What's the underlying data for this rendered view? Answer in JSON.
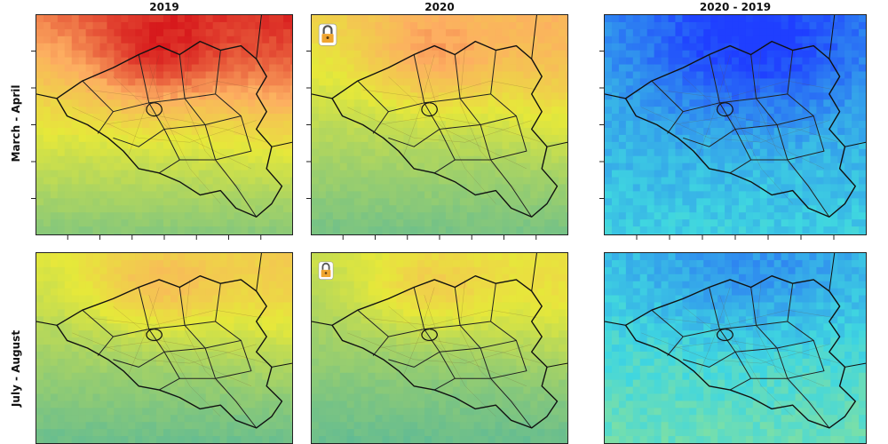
{
  "columns": [
    "2019",
    "2020",
    "2020 - 2019"
  ],
  "rows": [
    "March - April",
    "July - August"
  ],
  "panels": [
    {
      "row": 0,
      "col": 0,
      "palette": "abs",
      "level": 0.78,
      "lockdown": false
    },
    {
      "row": 0,
      "col": 1,
      "palette": "abs",
      "level": 0.55,
      "lockdown": true
    },
    {
      "row": 0,
      "col": 2,
      "palette": "diff",
      "level": 0.3,
      "lockdown": false
    },
    {
      "row": 1,
      "col": 0,
      "palette": "abs",
      "level": 0.45,
      "lockdown": false
    },
    {
      "row": 1,
      "col": 1,
      "palette": "abs",
      "level": 0.38,
      "lockdown": true
    },
    {
      "row": 1,
      "col": 2,
      "palette": "diff",
      "level": 0.45,
      "lockdown": false
    }
  ],
  "icons": {
    "lockdown": "padlock-icon"
  },
  "colors": {
    "abs_high": "#d7191c",
    "abs_mid": "#fdae61",
    "abs_low": "#4fb5a0",
    "diff_low": "#1f3fff",
    "diff_mid": "#3fd6e0",
    "diff_high": "#e8f040",
    "lock": "#f0a530"
  }
}
